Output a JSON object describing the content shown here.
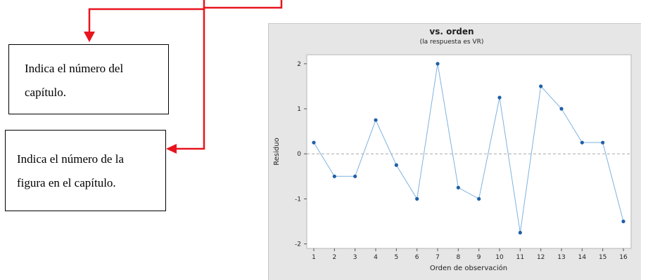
{
  "callouts": [
    {
      "text": "Indica el número del\ncapítulo."
    },
    {
      "text": "Indica el número de la\nfigura en el capítulo."
    }
  ],
  "colors": {
    "arrow": "#e8141e",
    "series_line": "#7fb2df",
    "series_marker": "#1f5fa6",
    "plot_panel": "#e6e6e6",
    "plot_area": "#ffffff",
    "reference_line": "#a8a8a8"
  },
  "chart_data": {
    "type": "line",
    "title": "vs. orden",
    "subtitle": "(la respuesta es VR)",
    "xlabel": "Orden de observación",
    "ylabel": "Residuo",
    "x": [
      1,
      2,
      3,
      4,
      5,
      6,
      7,
      8,
      9,
      10,
      11,
      12,
      13,
      14,
      15,
      16
    ],
    "y": [
      0.25,
      -0.5,
      -0.5,
      0.75,
      -0.25,
      -1.0,
      2.0,
      -0.75,
      -1.0,
      1.25,
      -1.75,
      1.5,
      1.0,
      0.25,
      0.25,
      -1.5
    ],
    "xticks": [
      1,
      2,
      3,
      4,
      5,
      6,
      7,
      8,
      9,
      10,
      11,
      12,
      13,
      14,
      15,
      16
    ],
    "yticks": [
      -2,
      -1,
      0,
      1,
      2
    ],
    "xlim": [
      0.6,
      16.4
    ],
    "ylim": [
      -2.1,
      2.2
    ],
    "reference_line": 0,
    "reference_line_style": "dashed",
    "grid": false,
    "markers": true
  }
}
